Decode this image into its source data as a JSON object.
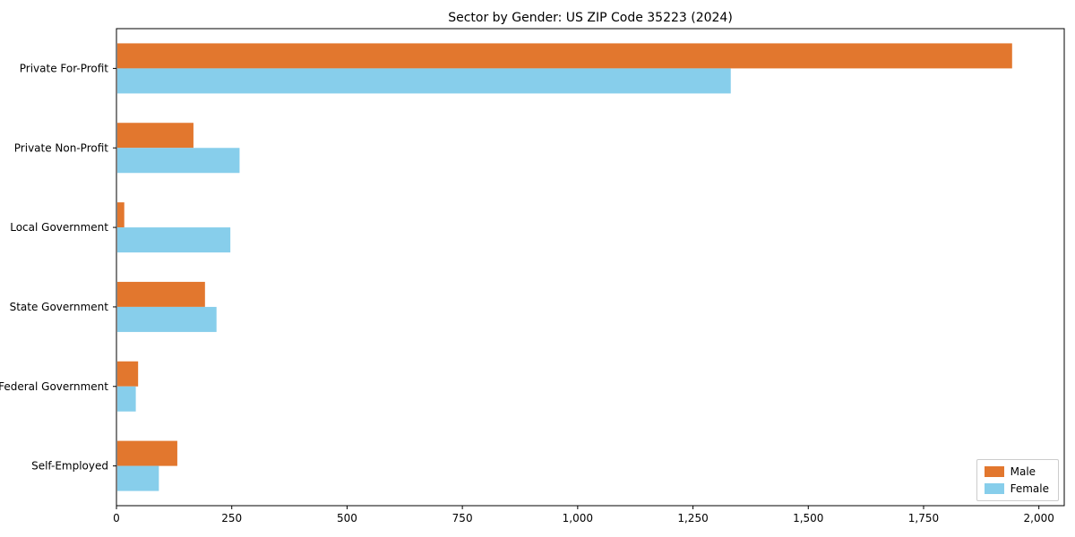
{
  "chart_data": {
    "type": "bar",
    "orientation": "horizontal",
    "title": "Sector by Gender: US ZIP Code 35223 (2024)",
    "categories": [
      "Private For-Profit",
      "Private Non-Profit",
      "Local Government",
      "State Government",
      "Federal Government",
      "Self-Employed"
    ],
    "series": [
      {
        "name": "Male",
        "color": "#e2772e",
        "values": [
          1940,
          165,
          15,
          190,
          45,
          130
        ]
      },
      {
        "name": "Female",
        "color": "#87ceeb",
        "values": [
          1330,
          265,
          245,
          215,
          40,
          90
        ]
      }
    ],
    "xlim": [
      0,
      2055
    ],
    "xticks": [
      0,
      250,
      500,
      750,
      1000,
      1250,
      1500,
      1750,
      2000
    ],
    "xtick_labels": [
      "0",
      "250",
      "500",
      "750",
      "1,000",
      "1,250",
      "1,500",
      "1,750",
      "2,000"
    ],
    "ylabel": "",
    "xlabel": "",
    "grid": false,
    "legend_position": "lower right"
  },
  "colors": {
    "axis": "#000000",
    "background": "#ffffff",
    "tick_label": "#000000"
  }
}
